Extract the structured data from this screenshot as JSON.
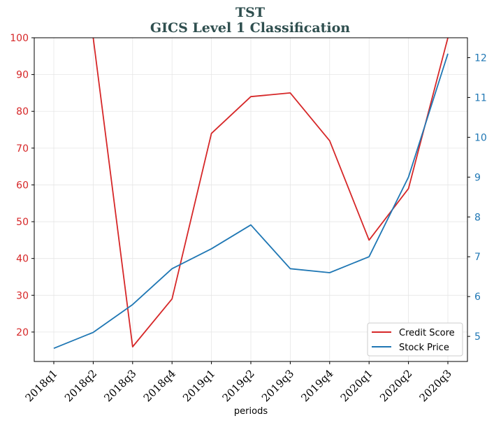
{
  "chart_data": {
    "type": "line",
    "title": "TST",
    "subtitle": "GICS Level 1 Classification",
    "xlabel": "periods",
    "categories": [
      "2018q1",
      "2018q2",
      "2018q3",
      "2018q4",
      "2019q1",
      "2019q2",
      "2019q3",
      "2019q4",
      "2020q1",
      "2020q2",
      "2020q3"
    ],
    "y_left": {
      "ylim": [
        12,
        100
      ],
      "ticks": [
        20,
        30,
        40,
        50,
        60,
        70,
        80,
        90,
        100
      ],
      "color": "#d62728"
    },
    "y_right": {
      "ylim": [
        4.37,
        12.5
      ],
      "ticks": [
        5,
        6,
        7,
        8,
        9,
        10,
        11,
        12
      ],
      "color": "#1f77b4"
    },
    "grid": true,
    "legend_position": "bottom-right",
    "series": [
      {
        "name": "Credit Score",
        "axis": "left",
        "color": "#d62728",
        "values": [
          null,
          100,
          16,
          29,
          74,
          84,
          85,
          72,
          45,
          59,
          100
        ]
      },
      {
        "name": "Stock Price",
        "axis": "right",
        "color": "#1f77b4",
        "values": [
          4.7,
          5.1,
          5.8,
          6.7,
          7.2,
          7.8,
          6.7,
          6.6,
          7.0,
          9.0,
          12.1
        ]
      }
    ]
  }
}
